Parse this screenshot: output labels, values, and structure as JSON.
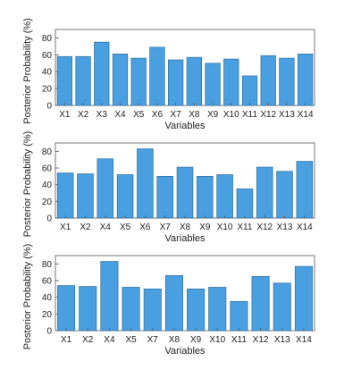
{
  "chart_data": [
    {
      "type": "bar",
      "categories": [
        "X1",
        "X2",
        "X3",
        "X4",
        "X5",
        "X6",
        "X7",
        "X8",
        "X9",
        "X10",
        "X11",
        "X12",
        "X13",
        "X14"
      ],
      "values": [
        58,
        58,
        75,
        61,
        56,
        69,
        54,
        57,
        50,
        55,
        35,
        59,
        56,
        61
      ],
      "xlabel": "",
      "ylabel": "Posterior Probability (%)",
      "ylim": [
        0,
        90
      ],
      "yticks": [
        0,
        20,
        40,
        60,
        80
      ],
      "grid": false,
      "bar_color": "#4a9fe0",
      "edge_color": "#2f6f9f"
    },
    {
      "type": "bar",
      "categories": [
        "X1",
        "X2",
        "X4",
        "X5",
        "X6",
        "X7",
        "X8",
        "X9",
        "X10",
        "X11",
        "X12",
        "X13",
        "X14"
      ],
      "values": [
        54,
        53,
        71,
        52,
        83,
        50,
        61,
        50,
        52,
        35,
        61,
        56,
        68
      ],
      "xlabel": "Variables",
      "ylabel": "Posterior Probability (%)",
      "ylim": [
        0,
        90
      ],
      "yticks": [
        0,
        20,
        40,
        60,
        80
      ],
      "grid": false,
      "bar_color": "#4a9fe0",
      "edge_color": "#2f6f9f"
    },
    {
      "type": "bar",
      "categories": [
        "X1",
        "X2",
        "X4",
        "X5",
        "X7",
        "X8",
        "X9",
        "X10",
        "X11",
        "X12",
        "X13",
        "X14"
      ],
      "values": [
        54,
        53,
        83,
        52,
        50,
        66,
        50,
        52,
        35,
        65,
        57,
        77
      ],
      "xlabel": "Variables",
      "ylabel": "Posterior Probability (%)",
      "ylim": [
        0,
        90
      ],
      "yticks": [
        0,
        20,
        40,
        60,
        80
      ],
      "grid": false,
      "bar_color": "#4a9fe0",
      "edge_color": "#2f6f9f"
    }
  ],
  "page_bottom_label": "Variables"
}
